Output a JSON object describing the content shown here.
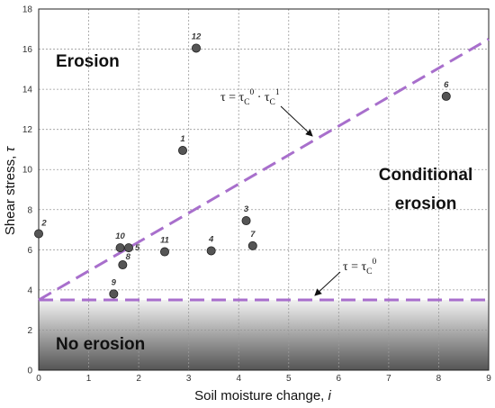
{
  "chart_data": {
    "type": "scatter",
    "xlabel": "Soil moisture change, ",
    "xlabel_var": "i",
    "ylabel": "Shear stress, ",
    "ylabel_var": "τ",
    "xlim": [
      0,
      9
    ],
    "ylim": [
      0,
      18
    ],
    "x_ticks": [
      0,
      1,
      2,
      3,
      4,
      5,
      6,
      7,
      8,
      9
    ],
    "y_ticks": [
      0,
      2,
      4,
      6,
      8,
      10,
      12,
      14,
      16,
      18
    ],
    "grid": true,
    "points": [
      {
        "label": "1",
        "x": 2.88,
        "y": 10.95
      },
      {
        "label": "2",
        "x": 0.0,
        "y": 6.8
      },
      {
        "label": "3",
        "x": 4.15,
        "y": 7.45
      },
      {
        "label": "4",
        "x": 3.45,
        "y": 5.95
      },
      {
        "label": "5",
        "x": 1.8,
        "y": 6.1
      },
      {
        "label": "6",
        "x": 8.15,
        "y": 13.65
      },
      {
        "label": "7",
        "x": 4.28,
        "y": 6.2
      },
      {
        "label": "8",
        "x": 1.68,
        "y": 5.25
      },
      {
        "label": "9",
        "x": 1.5,
        "y": 3.8
      },
      {
        "label": "10",
        "x": 1.63,
        "y": 6.1
      },
      {
        "label": "11",
        "x": 2.52,
        "y": 5.9
      },
      {
        "label": "12",
        "x": 3.15,
        "y": 16.05
      }
    ],
    "lines": [
      {
        "name": "tc0",
        "x": [
          0,
          9
        ],
        "y": [
          3.5,
          3.5
        ],
        "color": "#a86fcc",
        "style": "dashed"
      },
      {
        "name": "tc0_tc1",
        "x": [
          0,
          9
        ],
        "y": [
          3.5,
          16.5
        ],
        "color": "#a86fcc",
        "style": "dashed"
      }
    ],
    "regions": {
      "erosion": "Erosion",
      "conditional_1": "Conditional",
      "conditional_2": "erosion",
      "no_erosion": "No erosion"
    },
    "annotations": {
      "upper_formula": {
        "lhs": "τ = τ",
        "sub1": "C",
        "sup1": "0",
        "dot": " · τ",
        "sub2": "C",
        "sup2": "1"
      },
      "lower_formula": {
        "lhs": "τ = τ",
        "sub1": "C",
        "sup1": "0"
      }
    },
    "colors": {
      "point_fill": "#555555",
      "point_stroke": "#222222",
      "grid": "#9a9a9a",
      "threshold_line": "#a86fcc",
      "no_erosion_gradient_top": "#f2f2f2",
      "no_erosion_gradient_bottom": "#555555"
    }
  }
}
